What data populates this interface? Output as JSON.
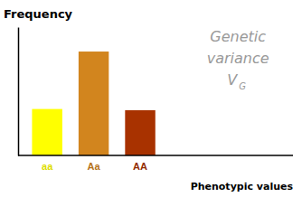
{
  "chart_data": {
    "type": "bar",
    "y_label": "Frequency",
    "x_label": "Phenotypic values",
    "categories": [
      "aa",
      "Aa",
      "AA"
    ],
    "values": [
      0.38,
      0.85,
      0.37
    ],
    "colors": [
      "#FFFF00",
      "#D2851E",
      "#A83200"
    ],
    "ylim": [
      0,
      1.05
    ],
    "tick_labels": "x",
    "grid": false,
    "annotations": [
      {
        "text": "Genetic",
        "color": "#999999"
      },
      {
        "text": "variance",
        "color": "#999999"
      },
      {
        "text": "V",
        "color": "#999999"
      },
      {
        "text": "G",
        "color": "#999999"
      }
    ]
  }
}
